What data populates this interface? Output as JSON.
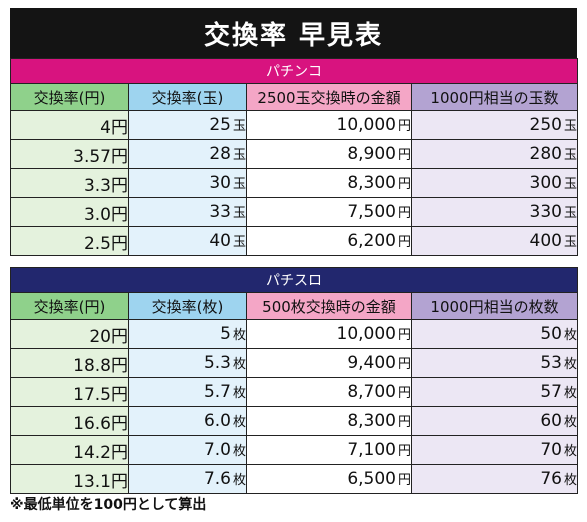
{
  "title": "交換率 早見表",
  "pachinko": {
    "section_label": "パチンコ",
    "headers": [
      "交換率(円)",
      "交換率(玉)",
      "2500玉交換時の金額",
      "1000円相当の玉数"
    ],
    "rows": [
      {
        "yen_rate": "4円",
        "ball_rate": "25",
        "ball_unit": "玉",
        "amount": "10,000",
        "amount_unit": "円",
        "count": "250",
        "count_unit": "玉"
      },
      {
        "yen_rate": "3.57円",
        "ball_rate": "28",
        "ball_unit": "玉",
        "amount": "8,900",
        "amount_unit": "円",
        "count": "280",
        "count_unit": "玉"
      },
      {
        "yen_rate": "3.3円",
        "ball_rate": "30",
        "ball_unit": "玉",
        "amount": "8,300",
        "amount_unit": "円",
        "count": "300",
        "count_unit": "玉"
      },
      {
        "yen_rate": "3.0円",
        "ball_rate": "33",
        "ball_unit": "玉",
        "amount": "7,500",
        "amount_unit": "円",
        "count": "330",
        "count_unit": "玉"
      },
      {
        "yen_rate": "2.5円",
        "ball_rate": "40",
        "ball_unit": "玉",
        "amount": "6,200",
        "amount_unit": "円",
        "count": "400",
        "count_unit": "玉"
      }
    ]
  },
  "pachislot": {
    "section_label": "パチスロ",
    "headers": [
      "交換率(円)",
      "交換率(枚)",
      "500枚交換時の金額",
      "1000円相当の枚数"
    ],
    "rows": [
      {
        "yen_rate": "20円",
        "medal_rate": "5",
        "medal_unit": "枚",
        "amount": "10,000",
        "amount_unit": "円",
        "count": "50",
        "count_unit": "枚"
      },
      {
        "yen_rate": "18.8円",
        "medal_rate": "5.3",
        "medal_unit": "枚",
        "amount": "9,400",
        "amount_unit": "円",
        "count": "53",
        "count_unit": "枚"
      },
      {
        "yen_rate": "17.5円",
        "medal_rate": "5.7",
        "medal_unit": "枚",
        "amount": "8,700",
        "amount_unit": "円",
        "count": "57",
        "count_unit": "枚"
      },
      {
        "yen_rate": "16.6円",
        "medal_rate": "6.0",
        "medal_unit": "枚",
        "amount": "8,300",
        "amount_unit": "円",
        "count": "60",
        "count_unit": "枚"
      },
      {
        "yen_rate": "14.2円",
        "medal_rate": "7.0",
        "medal_unit": "枚",
        "amount": "7,100",
        "amount_unit": "円",
        "count": "70",
        "count_unit": "枚"
      },
      {
        "yen_rate": "13.1円",
        "medal_rate": "7.6",
        "medal_unit": "枚",
        "amount": "6,500",
        "amount_unit": "円",
        "count": "76",
        "count_unit": "枚"
      }
    ]
  },
  "footnote": "※最低単位を100円として算出",
  "colors": {
    "title_bg": "#141414",
    "pachinko_band": "#d8137f",
    "pachislot_band": "#22276e",
    "col1_header": "#8fd18b",
    "col2_header": "#9ed4ef",
    "col3_header": "#f4a6c6",
    "col4_header": "#b3a3d2"
  }
}
